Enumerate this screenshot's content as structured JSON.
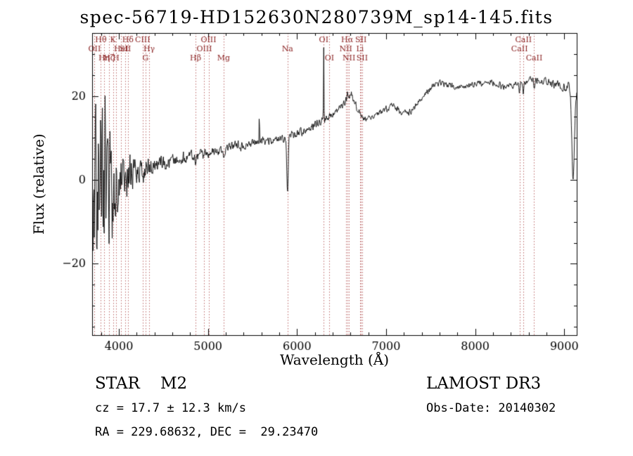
{
  "figure": {
    "background": "#ffffff"
  },
  "annotations": {
    "class_label": "STAR    M2",
    "cz_line": "cz = 17.7 ± 12.3 km/s",
    "radec_line": "RA = 229.68632, DEC =  29.23470",
    "survey": "LAMOST DR3",
    "obs_date": "Obs-Date: 20140302"
  },
  "chart_data": {
    "type": "line",
    "title": "spec-56719-HD152630N280739M_sp14-145.fits",
    "xlabel": "Wavelength (Å)",
    "ylabel": "Flux (relative)",
    "xlim": [
      3700,
      9140
    ],
    "ylim": [
      -37,
      35
    ],
    "x_major_ticks": [
      4000,
      5000,
      6000,
      7000,
      8000,
      9000
    ],
    "x_minor_step": 200,
    "y_major_ticks": [
      -20,
      0,
      20
    ],
    "y_minor_step": 5,
    "grid": false,
    "legend": "none",
    "line_color": "#000000",
    "spectral_line_color": "#bb6666",
    "spectral_label_color": "#8b2323",
    "spectral_lines": [
      {
        "label": "Hθ",
        "wavelength": 3798,
        "row": 1
      },
      {
        "label": "K",
        "wavelength": 3933,
        "row": 1
      },
      {
        "label": "Hδ",
        "wavelength": 4101,
        "row": 1
      },
      {
        "label": "CIII",
        "wavelength": 4267,
        "row": 1
      },
      {
        "label": "OIII",
        "wavelength": 5007,
        "row": 1
      },
      {
        "label": "OI",
        "wavelength": 6300,
        "row": 1
      },
      {
        "label": "Hα",
        "wavelength": 6563,
        "row": 1
      },
      {
        "label": "SII",
        "wavelength": 6717,
        "row": 1
      },
      {
        "label": "CaII",
        "wavelength": 8542,
        "row": 1
      },
      {
        "label": "OII",
        "wavelength": 3727,
        "row": 2
      },
      {
        "label": "HeI",
        "wavelength": 4026,
        "row": 2
      },
      {
        "label": "SII",
        "wavelength": 4072,
        "row": 2
      },
      {
        "label": "Hγ",
        "wavelength": 4340,
        "row": 2
      },
      {
        "label": "OIII",
        "wavelength": 4959,
        "row": 2
      },
      {
        "label": "Na",
        "wavelength": 5893,
        "row": 2
      },
      {
        "label": "NII",
        "wavelength": 6548,
        "row": 2
      },
      {
        "label": "Li",
        "wavelength": 6708,
        "row": 2
      },
      {
        "label": "CaII",
        "wavelength": 8498,
        "row": 2
      },
      {
        "label": "Hη",
        "wavelength": 3835,
        "row": 3
      },
      {
        "label": "Hζ",
        "wavelength": 3889,
        "row": 3
      },
      {
        "label": "H",
        "wavelength": 3968,
        "row": 3
      },
      {
        "label": "G",
        "wavelength": 4300,
        "row": 3
      },
      {
        "label": "Hβ",
        "wavelength": 4861,
        "row": 3
      },
      {
        "label": "Mg",
        "wavelength": 5175,
        "row": 3
      },
      {
        "label": "OI",
        "wavelength": 6364,
        "row": 3
      },
      {
        "label": "NII",
        "wavelength": 6583,
        "row": 3
      },
      {
        "label": "SII",
        "wavelength": 6731,
        "row": 3
      },
      {
        "label": "CaII",
        "wavelength": 8662,
        "row": 3
      }
    ],
    "spectrum": {
      "seed": 11,
      "step": 5,
      "continuum": [
        [
          3700,
          -2
        ],
        [
          3760,
          -1
        ],
        [
          3840,
          -2
        ],
        [
          3920,
          -1
        ],
        [
          4000,
          0.5
        ],
        [
          4100,
          1
        ],
        [
          4200,
          1.5
        ],
        [
          4300,
          2.2
        ],
        [
          4400,
          3
        ],
        [
          4500,
          3.8
        ],
        [
          4600,
          4.5
        ],
        [
          4700,
          5
        ],
        [
          4800,
          5.5
        ],
        [
          4900,
          6
        ],
        [
          5000,
          6.8
        ],
        [
          5100,
          7
        ],
        [
          5200,
          7.4
        ],
        [
          5300,
          8.2
        ],
        [
          5400,
          8
        ],
        [
          5500,
          8.6
        ],
        [
          5600,
          9
        ],
        [
          5700,
          9.4
        ],
        [
          5800,
          9.8
        ],
        [
          5870,
          10
        ],
        [
          5950,
          10.5
        ],
        [
          6000,
          11
        ],
        [
          6100,
          12
        ],
        [
          6200,
          13.2
        ],
        [
          6280,
          14
        ],
        [
          6360,
          15
        ],
        [
          6450,
          16.5
        ],
        [
          6520,
          18
        ],
        [
          6570,
          19.5
        ],
        [
          6610,
          20.5
        ],
        [
          6640,
          19
        ],
        [
          6690,
          16.5
        ],
        [
          6740,
          14.5
        ],
        [
          6800,
          14.8
        ],
        [
          6900,
          15.8
        ],
        [
          7000,
          16.8
        ],
        [
          7060,
          17.8
        ],
        [
          7120,
          17
        ],
        [
          7200,
          15.8
        ],
        [
          7280,
          16.2
        ],
        [
          7360,
          18.5
        ],
        [
          7440,
          20.5
        ],
        [
          7520,
          22.3
        ],
        [
          7600,
          23.2
        ],
        [
          7680,
          22.6
        ],
        [
          7760,
          22.3
        ],
        [
          7840,
          22
        ],
        [
          7920,
          22.3
        ],
        [
          8000,
          22.8
        ],
        [
          8080,
          23.2
        ],
        [
          8160,
          23.6
        ],
        [
          8240,
          22.8
        ],
        [
          8320,
          22.2
        ],
        [
          8400,
          22.4
        ],
        [
          8480,
          23
        ],
        [
          8560,
          23.4
        ],
        [
          8640,
          23.8
        ],
        [
          8720,
          24
        ],
        [
          8800,
          23.4
        ],
        [
          8880,
          22.8
        ],
        [
          8960,
          22.4
        ],
        [
          9040,
          22
        ],
        [
          9140,
          21.5
        ]
      ],
      "noise_amplitude": [
        [
          3700,
          16
        ],
        [
          3740,
          24
        ],
        [
          3780,
          30
        ],
        [
          3820,
          27
        ],
        [
          3860,
          22
        ],
        [
          3900,
          18
        ],
        [
          3940,
          16
        ],
        [
          3980,
          12
        ],
        [
          4020,
          8
        ],
        [
          4060,
          7
        ],
        [
          4100,
          6
        ],
        [
          4150,
          5
        ],
        [
          4200,
          4
        ],
        [
          4300,
          3.2
        ],
        [
          4400,
          2.6
        ],
        [
          4500,
          2.2
        ],
        [
          4700,
          1.9
        ],
        [
          5000,
          1.6
        ],
        [
          5300,
          1.4
        ],
        [
          5600,
          1.3
        ],
        [
          6000,
          1.2
        ],
        [
          6500,
          1.1
        ],
        [
          7000,
          1
        ],
        [
          7500,
          0.9
        ],
        [
          8000,
          0.9
        ],
        [
          8500,
          1
        ],
        [
          8800,
          1.1
        ],
        [
          9000,
          1.4
        ],
        [
          9140,
          2.2
        ]
      ],
      "features": [
        {
          "center": 4861,
          "amplitude": -2,
          "sigma": 4
        },
        {
          "center": 5175,
          "amplitude": -1.5,
          "sigma": 12
        },
        {
          "center": 5577,
          "amplitude": 7,
          "sigma": 2.5
        },
        {
          "center": 5893,
          "amplitude": -13,
          "sigma": 8
        },
        {
          "center": 6300,
          "amplitude": 17,
          "sigma": 2.5
        },
        {
          "center": 6563,
          "amplitude": 1.5,
          "sigma": 4
        },
        {
          "center": 8498,
          "amplitude": -2.5,
          "sigma": 5
        },
        {
          "center": 8542,
          "amplitude": -2.5,
          "sigma": 5
        },
        {
          "center": 8662,
          "amplitude": -2.5,
          "sigma": 5
        },
        {
          "center": 9100,
          "amplitude": -22,
          "sigma": 15
        }
      ]
    }
  }
}
